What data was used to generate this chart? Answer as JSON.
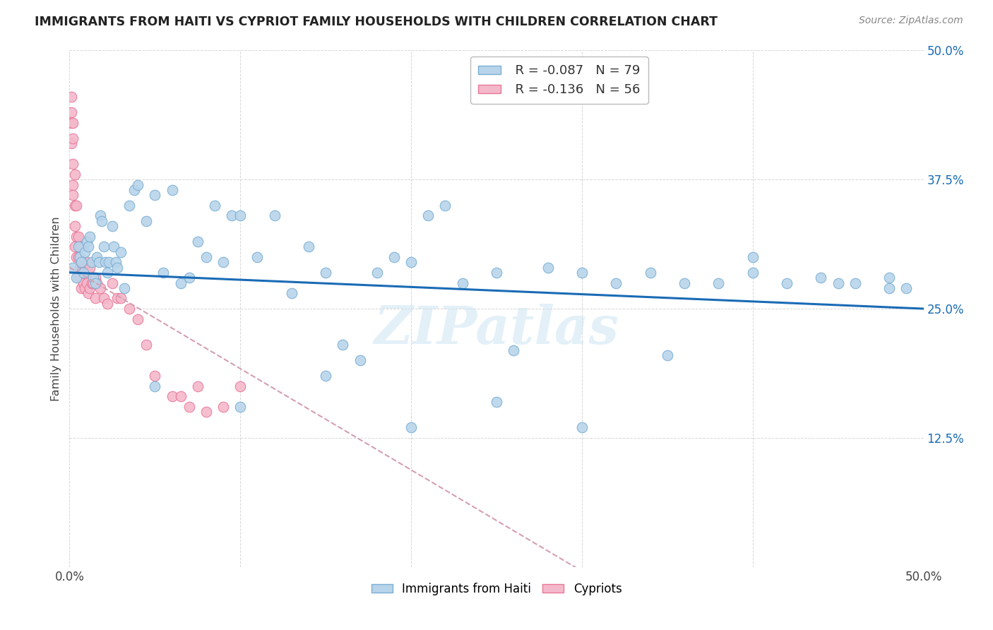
{
  "title": "IMMIGRANTS FROM HAITI VS CYPRIOT FAMILY HOUSEHOLDS WITH CHILDREN CORRELATION CHART",
  "source": "Source: ZipAtlas.com",
  "ylabel": "Family Households with Children",
  "xlim": [
    0,
    0.5
  ],
  "ylim": [
    0,
    0.5
  ],
  "legend_r1": "R = -0.087",
  "legend_n1": "N = 79",
  "legend_r2": "R = -0.136",
  "legend_n2": "N = 56",
  "haiti_color": "#b8d4ea",
  "cypriot_color": "#f4b8cb",
  "haiti_edge": "#7aafd4",
  "cypriot_edge": "#e87898",
  "trendline_haiti_color": "#1a6bb5",
  "trendline_cypriot_color": "#d4a0b0",
  "background_color": "#ffffff",
  "watermark": "ZIPatlas",
  "haiti_x": [
    0.002,
    0.004,
    0.005,
    0.006,
    0.007,
    0.008,
    0.009,
    0.01,
    0.011,
    0.012,
    0.013,
    0.014,
    0.015,
    0.016,
    0.017,
    0.018,
    0.019,
    0.02,
    0.021,
    0.022,
    0.023,
    0.025,
    0.026,
    0.027,
    0.028,
    0.03,
    0.032,
    0.035,
    0.038,
    0.04,
    0.045,
    0.05,
    0.055,
    0.06,
    0.065,
    0.07,
    0.075,
    0.08,
    0.085,
    0.09,
    0.095,
    0.1,
    0.11,
    0.12,
    0.13,
    0.14,
    0.15,
    0.16,
    0.17,
    0.18,
    0.19,
    0.2,
    0.21,
    0.22,
    0.23,
    0.25,
    0.26,
    0.28,
    0.3,
    0.32,
    0.34,
    0.36,
    0.38,
    0.4,
    0.42,
    0.44,
    0.46,
    0.48,
    0.05,
    0.1,
    0.15,
    0.2,
    0.25,
    0.3,
    0.35,
    0.4,
    0.45,
    0.48,
    0.49
  ],
  "haiti_y": [
    0.29,
    0.28,
    0.31,
    0.3,
    0.295,
    0.285,
    0.305,
    0.315,
    0.31,
    0.32,
    0.295,
    0.28,
    0.275,
    0.3,
    0.295,
    0.34,
    0.335,
    0.31,
    0.295,
    0.285,
    0.295,
    0.33,
    0.31,
    0.295,
    0.29,
    0.305,
    0.27,
    0.35,
    0.365,
    0.37,
    0.335,
    0.36,
    0.285,
    0.365,
    0.275,
    0.28,
    0.315,
    0.3,
    0.35,
    0.295,
    0.34,
    0.34,
    0.3,
    0.34,
    0.265,
    0.31,
    0.285,
    0.215,
    0.2,
    0.285,
    0.3,
    0.295,
    0.34,
    0.35,
    0.275,
    0.285,
    0.21,
    0.29,
    0.285,
    0.275,
    0.285,
    0.275,
    0.275,
    0.285,
    0.275,
    0.28,
    0.275,
    0.27,
    0.175,
    0.155,
    0.185,
    0.135,
    0.16,
    0.135,
    0.205,
    0.3,
    0.275,
    0.28,
    0.27
  ],
  "cypriot_x": [
    0.001,
    0.001,
    0.001,
    0.001,
    0.002,
    0.002,
    0.002,
    0.002,
    0.002,
    0.003,
    0.003,
    0.003,
    0.003,
    0.004,
    0.004,
    0.004,
    0.005,
    0.005,
    0.005,
    0.006,
    0.006,
    0.007,
    0.007,
    0.007,
    0.008,
    0.008,
    0.009,
    0.009,
    0.01,
    0.01,
    0.011,
    0.011,
    0.012,
    0.012,
    0.013,
    0.014,
    0.015,
    0.015,
    0.016,
    0.018,
    0.02,
    0.022,
    0.025,
    0.028,
    0.03,
    0.035,
    0.04,
    0.045,
    0.05,
    0.06,
    0.065,
    0.07,
    0.075,
    0.08,
    0.09,
    0.1
  ],
  "cypriot_y": [
    0.455,
    0.44,
    0.43,
    0.41,
    0.43,
    0.415,
    0.39,
    0.37,
    0.36,
    0.38,
    0.35,
    0.33,
    0.31,
    0.35,
    0.32,
    0.3,
    0.32,
    0.3,
    0.28,
    0.31,
    0.29,
    0.31,
    0.29,
    0.27,
    0.295,
    0.275,
    0.29,
    0.27,
    0.295,
    0.275,
    0.285,
    0.265,
    0.29,
    0.27,
    0.275,
    0.275,
    0.28,
    0.26,
    0.275,
    0.27,
    0.26,
    0.255,
    0.275,
    0.26,
    0.26,
    0.25,
    0.24,
    0.215,
    0.185,
    0.165,
    0.165,
    0.155,
    0.175,
    0.15,
    0.155,
    0.175
  ]
}
